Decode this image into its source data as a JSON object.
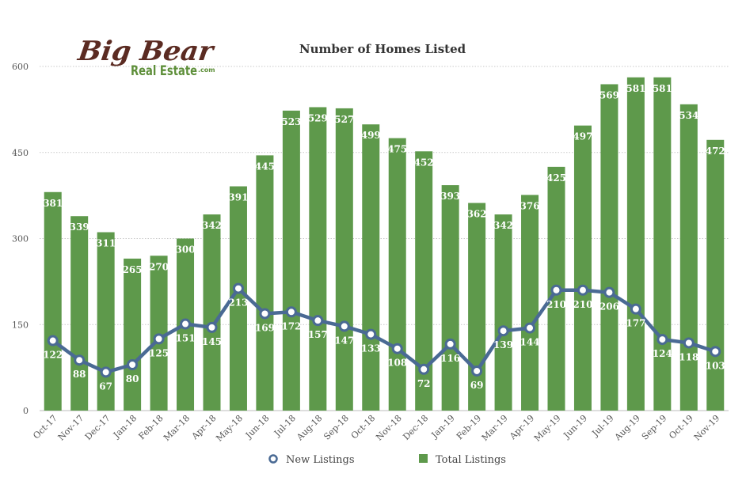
{
  "logo": {
    "brand": "Big Bear",
    "sub": "Real Estate",
    "suffix": ".com"
  },
  "chart_data": {
    "type": "bar+line",
    "title": "Number of Homes Listed",
    "xlabel": "",
    "ylabel": "",
    "ylim": [
      0,
      600
    ],
    "yticks": [
      0,
      150,
      300,
      450,
      600
    ],
    "grid": true,
    "legend_position": "bottom",
    "categories": [
      "Oct-17",
      "Nov-17",
      "Dec-17",
      "Jan-18",
      "Feb-18",
      "Mar-18",
      "Apr-18",
      "May-18",
      "Jun-18",
      "Jul-18",
      "Aug-18",
      "Sep-18",
      "Oct-18",
      "Nov-18",
      "Dec-18",
      "Jan-19",
      "Feb-19",
      "Mar-19",
      "Apr-19",
      "May-19",
      "Jun-19",
      "Jul-19",
      "Aug-19",
      "Sep-19",
      "Oct-19",
      "Nov-19"
    ],
    "series": [
      {
        "name": "Total Listings",
        "type": "bar",
        "color": "#5e994b",
        "values": [
          381,
          339,
          311,
          265,
          270,
          300,
          342,
          391,
          445,
          523,
          529,
          527,
          499,
          475,
          452,
          393,
          362,
          342,
          376,
          425,
          497,
          569,
          581,
          581,
          534,
          472
        ]
      },
      {
        "name": "New Listings",
        "type": "line",
        "color": "#4a6a94",
        "values": [
          122,
          88,
          67,
          80,
          125,
          151,
          145,
          213,
          169,
          172,
          157,
          147,
          133,
          108,
          72,
          116,
          69,
          139,
          144,
          210,
          210,
          206,
          177,
          124,
          118,
          103
        ]
      }
    ]
  }
}
